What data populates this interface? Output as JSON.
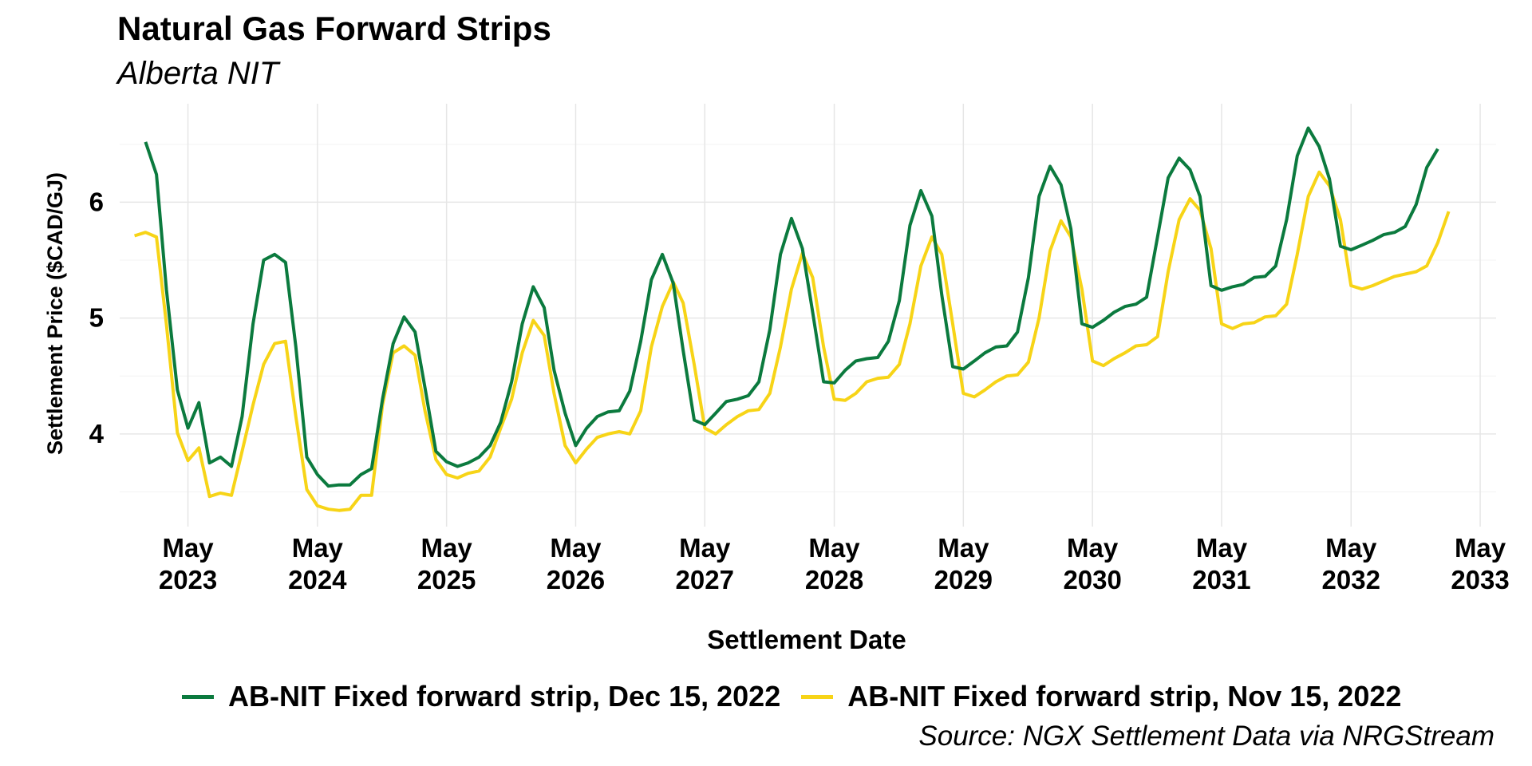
{
  "chart_data": {
    "type": "line",
    "title": "Natural Gas Forward Strips",
    "subtitle": "Alberta NIT",
    "xlabel": "Settlement Date",
    "ylabel": "Settlement Price ($CAD/GJ)",
    "caption": "Source: NGX Settlement Data via NRGStream",
    "x_ticks": [
      "2023-05-01",
      "2024-05-01",
      "2025-05-01",
      "2026-05-01",
      "2027-05-01",
      "2028-05-01",
      "2029-05-01",
      "2030-05-01",
      "2031-05-01",
      "2032-05-01",
      "2033-05-01"
    ],
    "x_tick_labels": [
      [
        "May",
        "2023"
      ],
      [
        "May",
        "2024"
      ],
      [
        "May",
        "2025"
      ],
      [
        "May",
        "2026"
      ],
      [
        "May",
        "2027"
      ],
      [
        "May",
        "2028"
      ],
      [
        "May",
        "2029"
      ],
      [
        "May",
        "2030"
      ],
      [
        "May",
        "2031"
      ],
      [
        "May",
        "2032"
      ],
      [
        "May",
        "2033"
      ]
    ],
    "y_ticks": [
      4,
      5,
      6
    ],
    "ylim": [
      3.2,
      6.85
    ],
    "xlim": [
      "2022-10-20",
      "2033-06-15"
    ],
    "grid": true,
    "legend_position": "bottom",
    "series": [
      {
        "name": "AB-NIT Fixed forward strip, Dec 15, 2022",
        "color": "#0b7a3e",
        "start": "2023-01",
        "values": [
          6.52,
          6.24,
          5.25,
          4.38,
          4.05,
          4.27,
          3.75,
          3.8,
          3.72,
          4.15,
          4.95,
          5.5,
          5.55,
          5.48,
          4.75,
          3.8,
          3.65,
          3.55,
          3.56,
          3.56,
          3.65,
          3.7,
          4.3,
          4.78,
          5.01,
          4.88,
          4.4,
          3.85,
          3.76,
          3.72,
          3.75,
          3.8,
          3.9,
          4.1,
          4.45,
          4.95,
          5.27,
          5.09,
          4.55,
          4.18,
          3.9,
          4.05,
          4.15,
          4.19,
          4.2,
          4.37,
          4.8,
          5.33,
          5.55,
          5.3,
          4.72,
          4.12,
          4.08,
          4.18,
          4.28,
          4.3,
          4.33,
          4.45,
          4.9,
          5.55,
          5.86,
          5.6,
          5.05,
          4.45,
          4.44,
          4.55,
          4.63,
          4.65,
          4.66,
          4.8,
          5.15,
          5.8,
          6.1,
          5.88,
          5.2,
          4.58,
          4.56,
          4.63,
          4.7,
          4.75,
          4.76,
          4.88,
          5.35,
          6.05,
          6.31,
          6.15,
          5.77,
          4.95,
          4.92,
          4.98,
          5.05,
          5.1,
          5.12,
          5.18,
          5.7,
          6.21,
          6.38,
          6.28,
          6.05,
          5.28,
          5.24,
          5.27,
          5.29,
          5.35,
          5.36,
          5.45,
          5.85,
          6.4,
          6.64,
          6.48,
          6.2,
          5.62,
          5.59,
          5.63,
          5.67,
          5.72,
          5.74,
          5.79,
          5.98,
          6.3,
          6.46
        ]
      },
      {
        "name": "AB-NIT Fixed forward strip, Nov 15, 2022",
        "color": "#f7d417",
        "start": "2022-12",
        "values": [
          5.71,
          5.74,
          5.7,
          4.95,
          4.01,
          3.77,
          3.88,
          3.46,
          3.49,
          3.47,
          3.85,
          4.25,
          4.6,
          4.78,
          4.8,
          4.15,
          3.52,
          3.38,
          3.35,
          3.34,
          3.35,
          3.47,
          3.47,
          4.25,
          4.7,
          4.76,
          4.68,
          4.2,
          3.78,
          3.65,
          3.62,
          3.66,
          3.68,
          3.8,
          4.05,
          4.3,
          4.7,
          4.98,
          4.85,
          4.35,
          3.9,
          3.75,
          3.87,
          3.97,
          4.0,
          4.02,
          4.0,
          4.2,
          4.75,
          5.1,
          5.31,
          5.13,
          4.6,
          4.05,
          4.0,
          4.08,
          4.15,
          4.2,
          4.21,
          4.35,
          4.75,
          5.25,
          5.56,
          5.35,
          4.75,
          4.3,
          4.29,
          4.35,
          4.45,
          4.48,
          4.49,
          4.6,
          4.95,
          5.45,
          5.7,
          5.55,
          4.95,
          4.35,
          4.32,
          4.38,
          4.45,
          4.5,
          4.51,
          4.62,
          5.0,
          5.58,
          5.84,
          5.7,
          5.25,
          4.63,
          4.59,
          4.65,
          4.7,
          4.76,
          4.77,
          4.84,
          5.4,
          5.85,
          6.03,
          5.93,
          5.6,
          4.95,
          4.91,
          4.95,
          4.96,
          5.01,
          5.02,
          5.12,
          5.55,
          6.05,
          6.26,
          6.14,
          5.85,
          5.28,
          5.25,
          5.28,
          5.32,
          5.36,
          5.38,
          5.4,
          5.45,
          5.65,
          5.92
        ]
      }
    ]
  }
}
